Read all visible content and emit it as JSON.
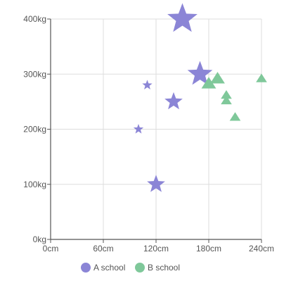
{
  "chart_data": {
    "type": "scatter",
    "x_ticks": [
      0,
      60,
      120,
      180,
      240
    ],
    "y_ticks": [
      0,
      100,
      200,
      300,
      400
    ],
    "x_unit": "cm",
    "y_unit": "kg",
    "xlim": [
      0,
      240
    ],
    "ylim": [
      0,
      400
    ],
    "grid": true,
    "legend_position": "bottom",
    "series": [
      {
        "name": "A school",
        "marker": "star",
        "color": "#8b85d6",
        "points": [
          {
            "x": 150,
            "y": 400,
            "size": 3
          },
          {
            "x": 170,
            "y": 300,
            "size": 2.5
          },
          {
            "x": 110,
            "y": 280,
            "size": 1
          },
          {
            "x": 140,
            "y": 250,
            "size": 1.8
          },
          {
            "x": 100,
            "y": 200,
            "size": 1
          },
          {
            "x": 120,
            "y": 100,
            "size": 1.8
          }
        ]
      },
      {
        "name": "B school",
        "marker": "triangle",
        "color": "#7fc89a",
        "points": [
          {
            "x": 190,
            "y": 292,
            "size": 2
          },
          {
            "x": 180,
            "y": 283,
            "size": 2
          },
          {
            "x": 240,
            "y": 292,
            "size": 1.5
          },
          {
            "x": 200,
            "y": 262,
            "size": 1.5
          },
          {
            "x": 200,
            "y": 252,
            "size": 1.5
          },
          {
            "x": 210,
            "y": 222,
            "size": 1.5
          }
        ]
      }
    ]
  }
}
